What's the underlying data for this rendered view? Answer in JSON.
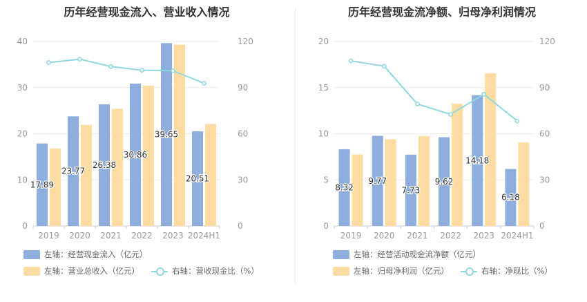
{
  "colors": {
    "bar1": "#8eaedd",
    "bar2": "#fedba0",
    "line": "#8fd8de",
    "axis": "#999999",
    "grid": "#ececec",
    "label": "#333333"
  },
  "chart_data": [
    {
      "type": "bar",
      "title": "历年经营现金流入、营业收入情况",
      "categories": [
        "2019",
        "2020",
        "2021",
        "2022",
        "2023",
        "2024H1"
      ],
      "y_left": {
        "min": 0,
        "max": 40,
        "ticks": [
          "0",
          "10",
          "20",
          "30",
          "40"
        ]
      },
      "y_right": {
        "min": 0,
        "max": 120,
        "ticks": [
          "0",
          "30",
          "60",
          "90",
          "120"
        ]
      },
      "series": [
        {
          "name": "左轴：经营现金流入（亿元）",
          "kind": "bar",
          "axis": "left",
          "values": [
            17.89,
            23.77,
            26.38,
            30.86,
            39.65,
            20.51
          ],
          "labels": [
            "17.89",
            "23.77",
            "26.38",
            "30.86",
            "39.65",
            "20.51"
          ]
        },
        {
          "name": "左轴：营业总收入（亿元）",
          "kind": "bar",
          "axis": "left",
          "values": [
            16.8,
            21.9,
            25.4,
            30.4,
            39.3,
            22.1
          ]
        },
        {
          "name": "右轴：营收现金比（%）",
          "kind": "line",
          "axis": "right",
          "values": [
            106.3,
            108.5,
            103.7,
            101.3,
            101.0,
            92.8
          ]
        }
      ]
    },
    {
      "type": "bar",
      "title": "历年经营现金流净额、归母净利润情况",
      "categories": [
        "2019",
        "2020",
        "2021",
        "2022",
        "2023",
        "2024H1"
      ],
      "y_left": {
        "min": 0,
        "max": 20,
        "ticks": [
          "0",
          "5",
          "10",
          "15",
          "20"
        ]
      },
      "y_right": {
        "min": 0,
        "max": 120,
        "ticks": [
          "0",
          "30",
          "60",
          "90",
          "120"
        ]
      },
      "series": [
        {
          "name": "左轴：经营活动现金流净额（亿元）",
          "kind": "bar",
          "axis": "left",
          "values": [
            8.32,
            9.77,
            7.73,
            9.62,
            14.18,
            6.18
          ],
          "labels": [
            "8.32",
            "9.77",
            "7.73",
            "9.62",
            "14.18",
            "6.18"
          ]
        },
        {
          "name": "左轴：归母净利润（亿元）",
          "kind": "bar",
          "axis": "left",
          "values": [
            7.75,
            9.4,
            9.75,
            13.25,
            16.55,
            9.05
          ]
        },
        {
          "name": "右轴：净现比（%）",
          "kind": "line",
          "axis": "right",
          "values": [
            107.4,
            103.9,
            79.3,
            72.6,
            85.7,
            68.3
          ]
        }
      ]
    }
  ]
}
